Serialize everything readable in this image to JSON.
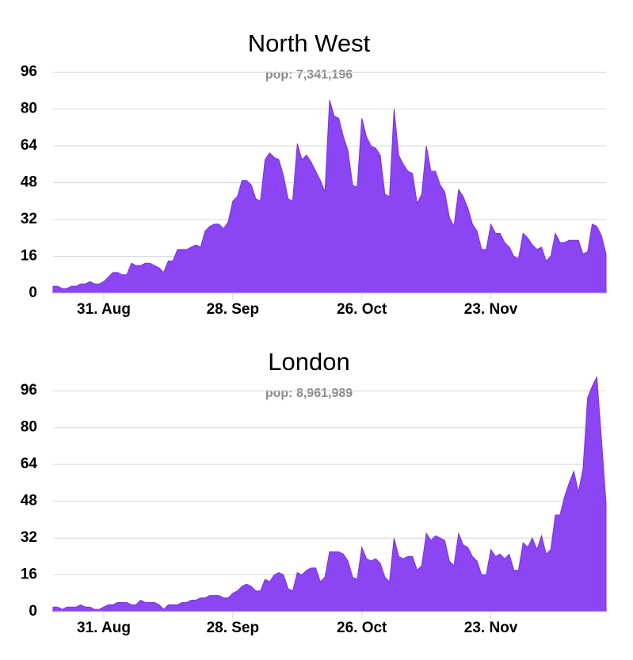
{
  "chart_data": [
    {
      "type": "area",
      "title": "North West",
      "subtitle": "pop: 7,341,196",
      "color": "#8b45f3",
      "categories": [
        null,
        null,
        null,
        null,
        null,
        null,
        null,
        null,
        null,
        null,
        null,
        "31. Aug",
        null,
        null,
        null,
        null,
        null,
        null,
        null,
        null,
        null,
        null,
        null,
        null,
        null,
        null,
        null,
        null,
        null,
        null,
        null,
        null,
        null,
        null,
        null,
        null,
        null,
        null,
        null,
        "28. Sep",
        null,
        null,
        null,
        null,
        null,
        null,
        null,
        null,
        null,
        null,
        null,
        null,
        null,
        null,
        null,
        null,
        null,
        null,
        null,
        null,
        null,
        null,
        null,
        null,
        null,
        null,
        null,
        "26. Oct",
        null,
        null,
        null,
        null,
        null,
        null,
        null,
        null,
        null,
        null,
        null,
        null,
        null,
        null,
        null,
        null,
        null,
        null,
        null,
        null,
        null,
        null,
        null,
        null,
        null,
        null,
        null,
        "23. Nov",
        null,
        null,
        null,
        null,
        null,
        null,
        null,
        null,
        null,
        null,
        null,
        null,
        null,
        null,
        null,
        null,
        null,
        null,
        null,
        null,
        null,
        null,
        null,
        null,
        null
      ],
      "values": [
        3,
        3,
        2,
        2,
        3,
        3,
        4,
        4,
        5,
        4,
        4,
        5,
        7,
        9,
        9,
        8,
        8,
        13,
        12,
        12,
        13,
        13,
        12,
        11,
        9,
        14,
        14,
        19,
        19,
        19,
        20,
        21,
        20,
        27,
        29,
        30,
        30,
        28,
        31,
        40,
        42,
        49,
        49,
        47,
        41,
        40,
        58,
        61,
        59,
        58,
        51,
        41,
        40,
        65,
        58,
        60,
        57,
        53,
        49,
        44,
        84,
        77,
        76,
        68,
        62,
        47,
        46,
        76,
        68,
        64,
        63,
        60,
        43,
        42,
        80,
        60,
        56,
        53,
        52,
        39,
        43,
        64,
        53,
        53,
        47,
        44,
        33,
        29,
        45,
        42,
        37,
        30,
        27,
        19,
        19,
        30,
        26,
        26,
        22,
        20,
        16,
        15,
        26,
        24,
        21,
        19,
        20,
        14,
        16,
        26,
        22,
        22,
        23,
        23,
        23,
        17,
        18,
        30,
        29,
        25,
        17
      ],
      "ylim": [
        0,
        104
      ],
      "yticks": [
        0,
        16,
        32,
        48,
        64,
        80,
        96
      ],
      "grid": true
    },
    {
      "type": "area",
      "title": "London",
      "subtitle": "pop: 8,961,989",
      "color": "#8b45f3",
      "categories": [
        null,
        null,
        null,
        null,
        null,
        null,
        null,
        null,
        null,
        null,
        null,
        "31. Aug",
        null,
        null,
        null,
        null,
        null,
        null,
        null,
        null,
        null,
        null,
        null,
        null,
        null,
        null,
        null,
        null,
        null,
        null,
        null,
        null,
        null,
        null,
        null,
        null,
        null,
        null,
        null,
        "28. Sep",
        null,
        null,
        null,
        null,
        null,
        null,
        null,
        null,
        null,
        null,
        null,
        null,
        null,
        null,
        null,
        null,
        null,
        null,
        null,
        null,
        null,
        null,
        null,
        null,
        null,
        null,
        null,
        "26. Oct",
        null,
        null,
        null,
        null,
        null,
        null,
        null,
        null,
        null,
        null,
        null,
        null,
        null,
        null,
        null,
        null,
        null,
        null,
        null,
        null,
        null,
        null,
        null,
        null,
        null,
        null,
        null,
        "23. Nov",
        null,
        null,
        null,
        null,
        null,
        null,
        null,
        null,
        null,
        null,
        null,
        null,
        null,
        null,
        null,
        null,
        null,
        null,
        null,
        null,
        null,
        null,
        null,
        null,
        null
      ],
      "values": [
        2,
        2,
        1,
        2,
        2,
        2,
        3,
        2,
        2,
        1,
        1,
        2,
        3,
        3,
        4,
        4,
        4,
        3,
        3,
        5,
        4,
        4,
        4,
        3,
        1,
        3,
        3,
        3,
        4,
        4,
        5,
        5,
        6,
        6,
        7,
        7,
        7,
        6,
        6,
        8,
        9,
        11,
        12,
        11,
        9,
        9,
        14,
        13,
        16,
        17,
        16,
        10,
        9,
        17,
        16,
        18,
        19,
        19,
        13,
        15,
        26,
        26,
        26,
        25,
        22,
        15,
        14,
        28,
        23,
        22,
        23,
        21,
        15,
        13,
        32,
        24,
        23,
        24,
        24,
        18,
        20,
        34,
        31,
        33,
        32,
        31,
        22,
        20,
        34,
        29,
        28,
        24,
        22,
        16,
        16,
        27,
        24,
        25,
        23,
        25,
        18,
        18,
        30,
        28,
        32,
        27,
        33,
        25,
        27,
        42,
        42,
        50,
        56,
        61,
        52,
        62,
        93,
        98,
        102,
        75,
        47
      ],
      "ylim": [
        0,
        104
      ],
      "yticks": [
        0,
        16,
        32,
        48,
        64,
        80,
        96
      ],
      "grid": true
    }
  ]
}
